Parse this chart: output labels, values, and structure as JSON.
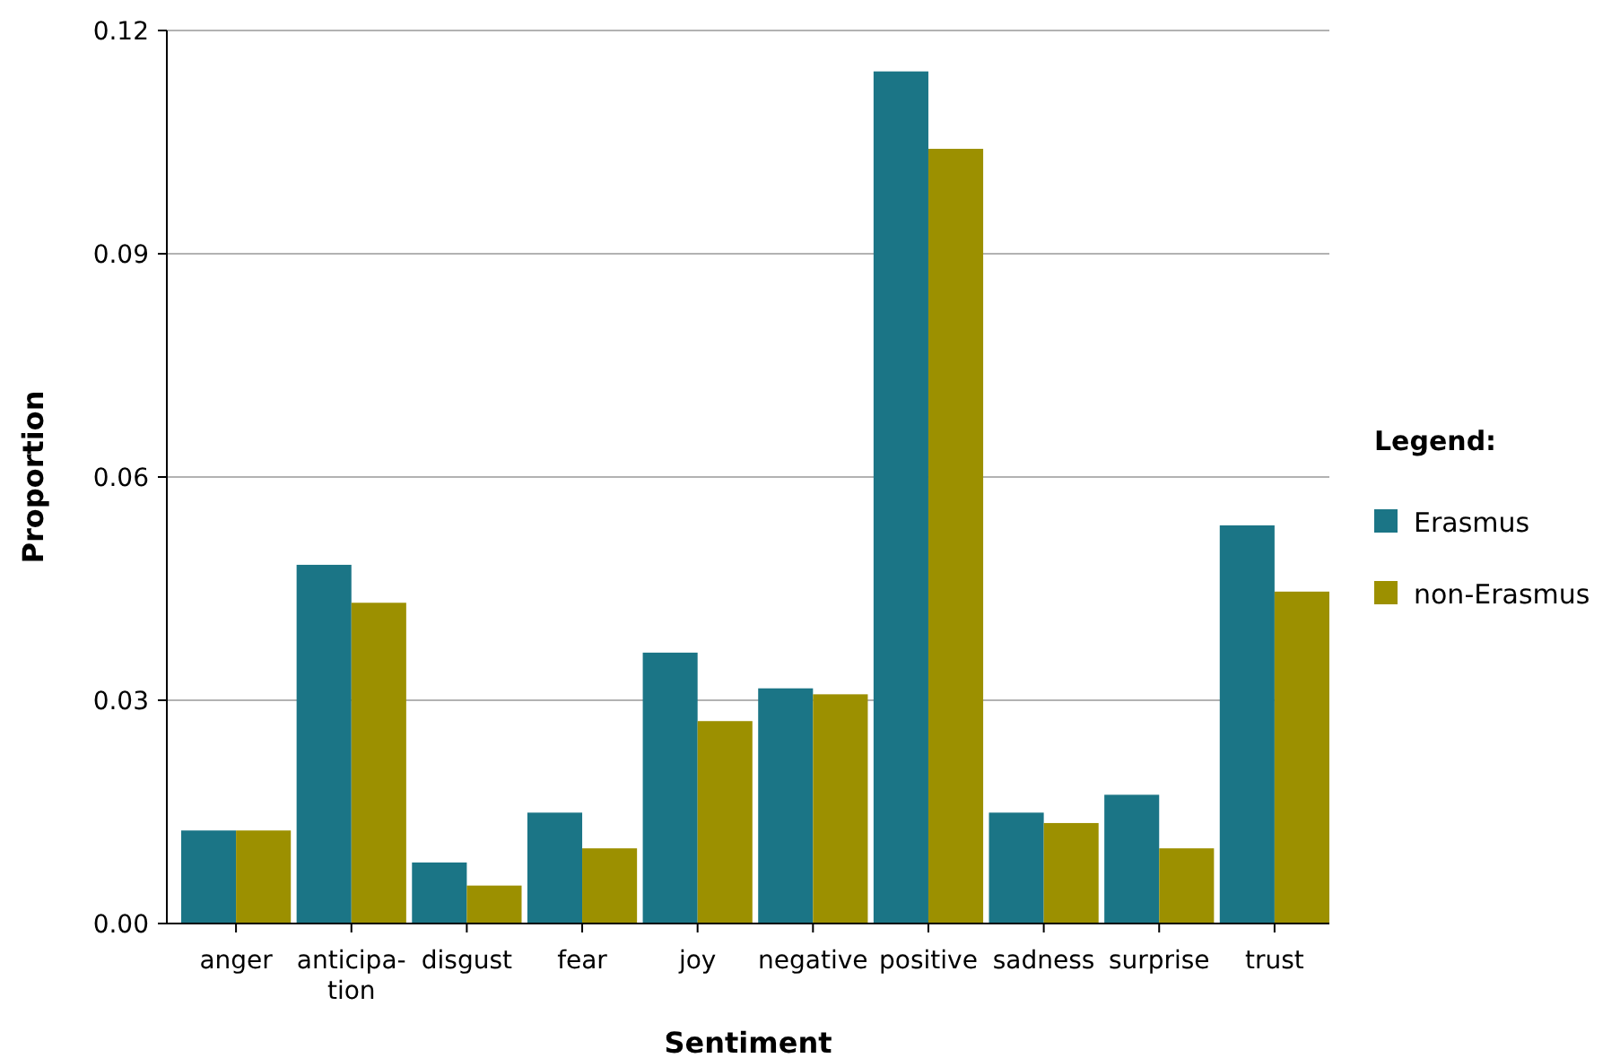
{
  "chart_data": {
    "type": "bar",
    "xlabel": "Sentiment",
    "ylabel": "Proportion",
    "legend_title": "Legend:",
    "categories": [
      "anger",
      "anticipa-\ntion",
      "disgust",
      "fear",
      "joy",
      "negative",
      "positive",
      "sadness",
      "surprise",
      "trust"
    ],
    "series": [
      {
        "name": "Erasmus",
        "color": "#1b7586",
        "values": [
          0.0125,
          0.0482,
          0.0082,
          0.0149,
          0.0364,
          0.0316,
          0.1145,
          0.0149,
          0.0173,
          0.0535
        ]
      },
      {
        "name": "non-Erasmus",
        "color": "#9c9000",
        "values": [
          0.0125,
          0.0431,
          0.0051,
          0.0101,
          0.0272,
          0.0308,
          0.1041,
          0.0135,
          0.0101,
          0.0446
        ]
      }
    ],
    "ylim": [
      0,
      0.12
    ],
    "yticks": [
      {
        "value": 0,
        "label": "0.00"
      },
      {
        "value": 0.03,
        "label": "0.03"
      },
      {
        "value": 0.06,
        "label": "0.06"
      },
      {
        "value": 0.09,
        "label": "0.09"
      },
      {
        "value": 0.12,
        "label": "0.12"
      }
    ],
    "grid": "y",
    "legend": "right"
  }
}
